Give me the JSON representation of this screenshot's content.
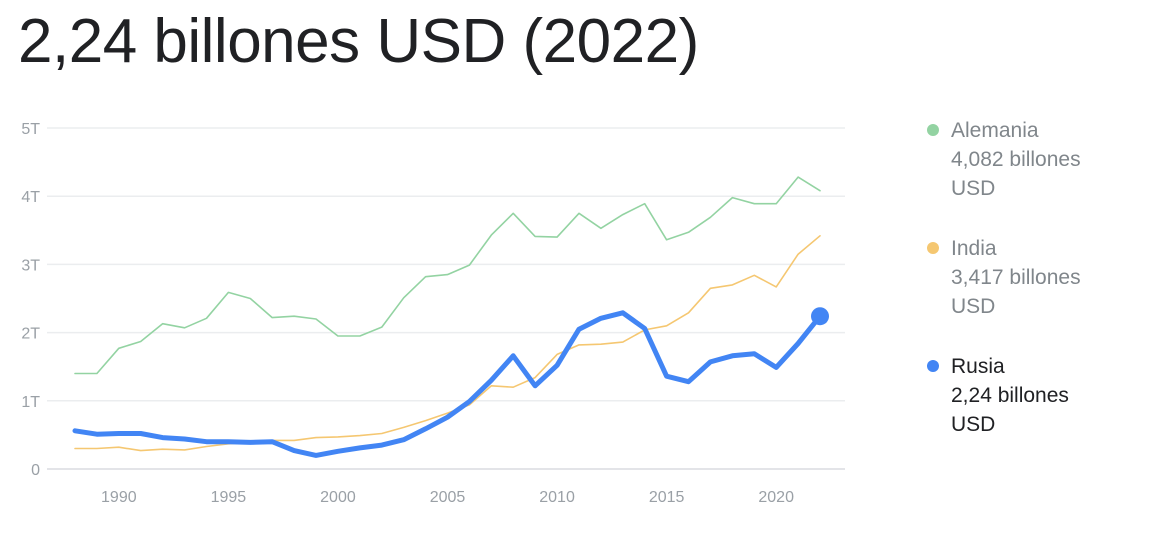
{
  "title": "2,24 billones USD (2022)",
  "chart_data": {
    "type": "line",
    "title": "2,24 billones USD (2022)",
    "x": [
      1988,
      1989,
      1990,
      1991,
      1992,
      1993,
      1994,
      1995,
      1996,
      1997,
      1998,
      1999,
      2000,
      2001,
      2002,
      2003,
      2004,
      2005,
      2006,
      2007,
      2008,
      2009,
      2010,
      2011,
      2012,
      2013,
      2014,
      2015,
      2016,
      2017,
      2018,
      2019,
      2020,
      2021,
      2022
    ],
    "x_ticks": [
      "1990",
      "1995",
      "2000",
      "2005",
      "2010",
      "2015",
      "2020"
    ],
    "x_tick_values": [
      1990,
      1995,
      2000,
      2005,
      2010,
      2015,
      2020
    ],
    "y_ticks": [
      "0",
      "1T",
      "2T",
      "3T",
      "4T",
      "5T"
    ],
    "y_tick_values": [
      0,
      1,
      2,
      3,
      4,
      5
    ],
    "ylim": [
      0,
      5
    ],
    "y_unit": "billones USD",
    "series": [
      {
        "name": "Alemania",
        "color": "#93d3a2",
        "value_label": "4,082 billones USD",
        "values": [
          1.4,
          1.4,
          1.77,
          1.87,
          2.13,
          2.07,
          2.21,
          2.59,
          2.5,
          2.22,
          2.24,
          2.2,
          1.95,
          1.95,
          2.08,
          2.51,
          2.82,
          2.85,
          2.99,
          3.43,
          3.75,
          3.41,
          3.4,
          3.75,
          3.53,
          3.73,
          3.89,
          3.36,
          3.47,
          3.69,
          3.98,
          3.89,
          3.89,
          4.28,
          4.08
        ]
      },
      {
        "name": "India",
        "color": "#f5c771",
        "value_label": "3,417 billones USD",
        "values": [
          0.3,
          0.3,
          0.32,
          0.27,
          0.29,
          0.28,
          0.33,
          0.37,
          0.39,
          0.42,
          0.42,
          0.46,
          0.47,
          0.49,
          0.52,
          0.61,
          0.71,
          0.82,
          0.94,
          1.22,
          1.2,
          1.34,
          1.68,
          1.82,
          1.83,
          1.86,
          2.04,
          2.1,
          2.29,
          2.65,
          2.7,
          2.84,
          2.67,
          3.15,
          3.42
        ]
      },
      {
        "name": "Rusia",
        "color": "#4285f4",
        "value_label": "2,24 billones USD",
        "highlight": true,
        "values": [
          0.56,
          0.51,
          0.52,
          0.52,
          0.46,
          0.44,
          0.4,
          0.4,
          0.39,
          0.4,
          0.27,
          0.2,
          0.26,
          0.31,
          0.35,
          0.43,
          0.59,
          0.76,
          0.99,
          1.3,
          1.66,
          1.22,
          1.52,
          2.05,
          2.21,
          2.29,
          2.06,
          1.36,
          1.28,
          1.57,
          1.66,
          1.69,
          1.49,
          1.84,
          2.24
        ]
      }
    ]
  },
  "legend": [
    {
      "name": "Alemania",
      "value": "4,082 billones USD"
    },
    {
      "name": "India",
      "value": "3,417 billones USD"
    },
    {
      "name": "Rusia",
      "value": "2,24 billones USD"
    }
  ]
}
